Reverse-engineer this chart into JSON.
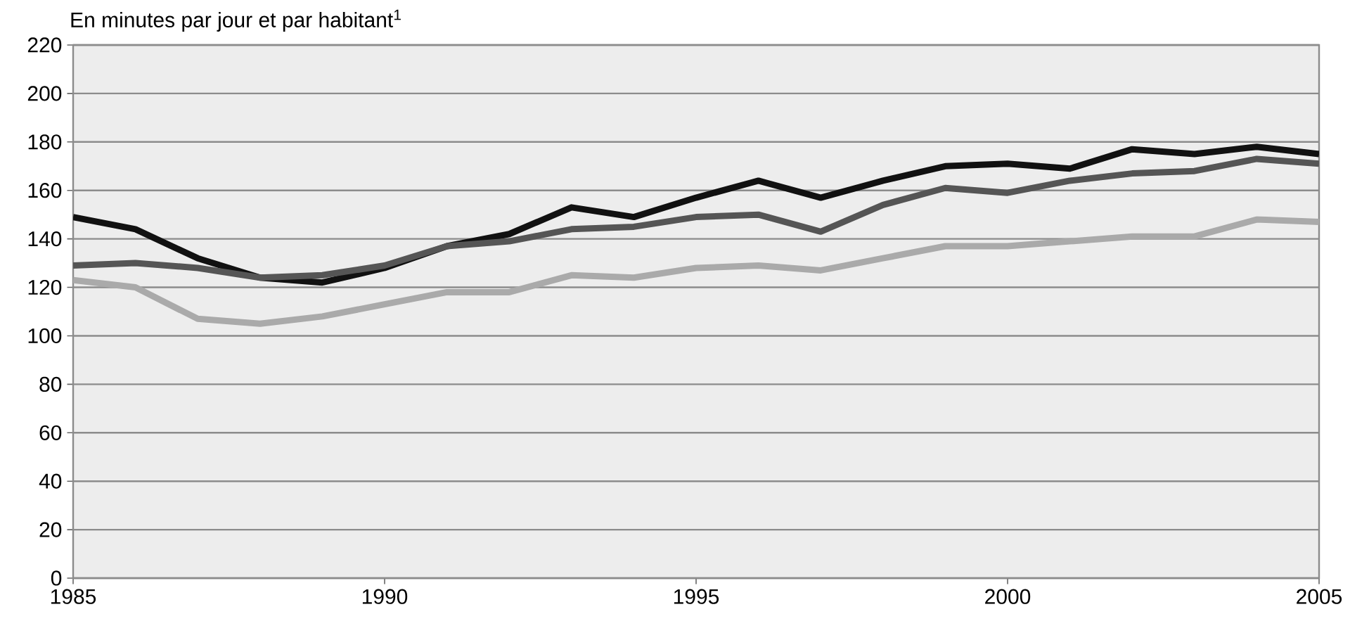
{
  "chart_data": {
    "type": "line",
    "title": "En minutes par jour et par habitant$^{1}$",
    "x": [
      1985,
      1986,
      1987,
      1988,
      1989,
      1990,
      1991,
      1992,
      1993,
      1994,
      1995,
      1996,
      1997,
      1998,
      1999,
      2000,
      2001,
      2002,
      2003,
      2004,
      2005
    ],
    "series": [
      {
        "color": "#111111",
        "values": [
          149,
          144,
          132,
          124,
          122,
          128,
          137,
          142,
          153,
          149,
          157,
          164,
          157,
          164,
          170,
          171,
          169,
          177,
          175,
          178,
          175
        ]
      },
      {
        "color": "#555555",
        "values": [
          129,
          130,
          128,
          124,
          125,
          129,
          137,
          139,
          144,
          145,
          149,
          150,
          143,
          154,
          161,
          159,
          164,
          167,
          168,
          173,
          171
        ]
      },
      {
        "color": "#aaaaaa",
        "values": [
          123,
          120,
          107,
          105,
          108,
          113,
          118,
          118,
          125,
          124,
          128,
          129,
          127,
          132,
          137,
          137,
          139,
          141,
          141,
          148,
          147
        ]
      }
    ],
    "xlim": [
      1985,
      2005
    ],
    "xticks": [
      1985,
      1990,
      1995,
      2000,
      2005
    ],
    "ylim": [
      0,
      220
    ],
    "yticks": [
      0,
      20,
      40,
      60,
      80,
      100,
      120,
      140,
      160,
      180,
      200,
      220
    ],
    "grid": "y",
    "marker": "none",
    "line_style": "solid"
  }
}
